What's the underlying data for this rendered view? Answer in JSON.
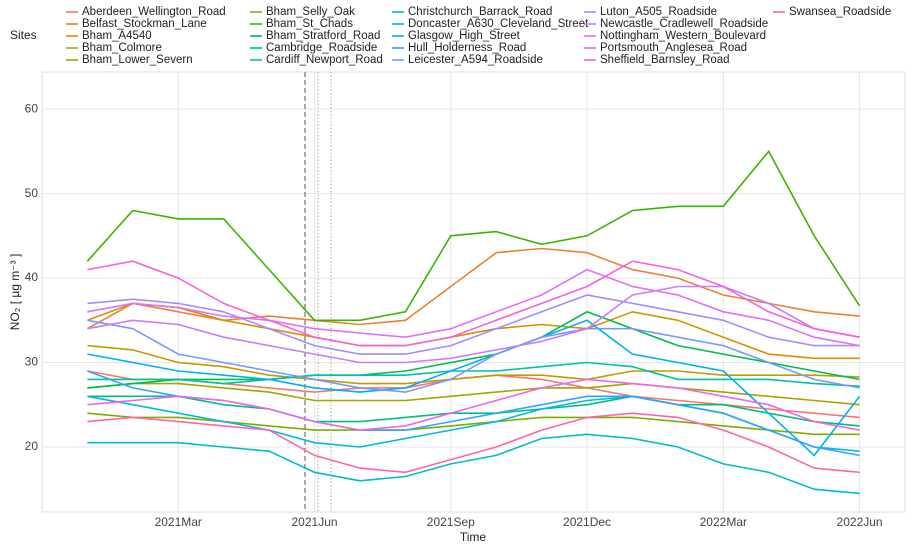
{
  "chart_data": {
    "type": "line",
    "legend_title": "Sites",
    "x_label": "Time",
    "y_label": "NO₂ [ µg m⁻³ ]",
    "x": [
      "2021-01",
      "2021-02",
      "2021-03",
      "2021-04",
      "2021-05",
      "2021-06",
      "2021-07",
      "2021-08",
      "2021-09",
      "2021-10",
      "2021-11",
      "2021-12",
      "2022-01",
      "2022-02",
      "2022-03",
      "2022-04",
      "2022-05",
      "2022-06"
    ],
    "xlim": [
      "2020-12",
      "2022-07"
    ],
    "xticks": [
      {
        "value": "2021-03",
        "label": "2021Mar"
      },
      {
        "value": "2021-06",
        "label": "2021Jun"
      },
      {
        "value": "2021-09",
        "label": "2021Sep"
      },
      {
        "value": "2021-12",
        "label": "2021Dec"
      },
      {
        "value": "2022-03",
        "label": "2022Mar"
      },
      {
        "value": "2022-06",
        "label": "2022Jun"
      }
    ],
    "ylim": [
      12.3,
      64.4
    ],
    "yticks": [
      20,
      30,
      40,
      50,
      60
    ],
    "grid": true,
    "legend": "top",
    "series": [
      {
        "name": "Aberdeen_Wellington_Road",
        "color": "#F8766D",
        "values": [
          29,
          28,
          28,
          27.5,
          27,
          26.5,
          27,
          27,
          28,
          28.5,
          28,
          27,
          26,
          25.5,
          25,
          24.5,
          24,
          23.5
        ]
      },
      {
        "name": "Belfast_Stockman_Lane",
        "color": "#EA8331",
        "values": [
          34,
          37,
          36,
          35,
          35.5,
          35,
          34.5,
          35,
          39,
          43,
          43.5,
          43,
          41,
          40,
          38,
          37,
          36,
          35.5
        ]
      },
      {
        "name": "Bham_A4540",
        "color": "#D89000",
        "values": [
          35,
          37,
          36.5,
          35,
          34,
          33,
          32,
          32,
          33,
          34,
          34.5,
          34,
          36,
          35,
          33,
          31,
          30.5,
          30.5
        ]
      },
      {
        "name": "Bham_Colmore",
        "color": "#C09B00",
        "values": [
          32,
          31.5,
          30,
          29.5,
          28.5,
          28,
          27.5,
          27.5,
          28,
          28.5,
          28.5,
          28,
          29,
          29,
          28.5,
          28.5,
          28.5,
          28.3
        ]
      },
      {
        "name": "Bham_Lower_Severn",
        "color": "#A3A500",
        "values": [
          27,
          27.5,
          27.5,
          27,
          26.5,
          25.5,
          25.5,
          25.5,
          26,
          26.5,
          27,
          27,
          27.5,
          27,
          26.5,
          26,
          25.5,
          25
        ]
      },
      {
        "name": "Bham_Selly_Oak",
        "color": "#7CAE00",
        "values": [
          24,
          23.5,
          23.5,
          23,
          22.5,
          22,
          22,
          22,
          22.5,
          23,
          23.5,
          23.5,
          23.5,
          23,
          22.5,
          22,
          21.5,
          21.5
        ]
      },
      {
        "name": "Bham_St_Chads",
        "color": "#39B600",
        "values": [
          42,
          48,
          47,
          47,
          41,
          35,
          35,
          36,
          45,
          45.5,
          44,
          45,
          48,
          48.5,
          48.5,
          55,
          45,
          36.7
        ]
      },
      {
        "name": "Bham_Stratford_Road",
        "color": "#00BB4E",
        "values": [
          27,
          27.5,
          28,
          28,
          28,
          28.5,
          28.5,
          29,
          30,
          31,
          33,
          36,
          34,
          32,
          31,
          30,
          29,
          28
        ]
      },
      {
        "name": "Cambridge_Roadside",
        "color": "#00BF7D",
        "values": [
          26,
          26,
          26,
          25,
          24.5,
          23,
          23,
          23.5,
          24,
          24,
          24.5,
          25,
          26,
          25,
          25,
          24,
          23,
          22.5
        ]
      },
      {
        "name": "Cardiff_Newport_Road",
        "color": "#00C1A3",
        "values": [
          28,
          28,
          28,
          27.5,
          28,
          28.5,
          28.5,
          28.5,
          29,
          29,
          29.5,
          30,
          29.5,
          28,
          28,
          28,
          27.5,
          27.2
        ]
      },
      {
        "name": "Christchurch_Barrack_Road",
        "color": "#00BFC4",
        "values": [
          20.5,
          20.5,
          20.5,
          20,
          19.5,
          17,
          16,
          16.5,
          18,
          19,
          21,
          21.5,
          21,
          20,
          18,
          17,
          15,
          14.5
        ]
      },
      {
        "name": "Doncaster_A630_Cleveland_Street",
        "color": "#00BAE0",
        "values": [
          26,
          25,
          24,
          23,
          22,
          20.5,
          20,
          21,
          22,
          23,
          24.5,
          25.5,
          26,
          25,
          24,
          22,
          20,
          19.5
        ]
      },
      {
        "name": "Glasgow_High_Street",
        "color": "#00B0F6",
        "values": [
          31,
          30,
          29,
          28.5,
          28,
          27,
          26.5,
          27,
          29,
          31,
          33,
          35,
          31,
          30,
          29,
          24,
          19,
          26
        ]
      },
      {
        "name": "Hull_Holderness_Road",
        "color": "#35A2FF",
        "values": [
          29,
          27,
          26,
          25.5,
          24.5,
          23,
          22,
          22,
          23,
          24,
          25,
          26,
          26,
          25,
          24,
          22,
          20,
          19
        ]
      },
      {
        "name": "Leicester_A594_Roadside",
        "color": "#7997FF",
        "values": [
          35,
          34,
          31,
          30,
          29,
          28,
          27,
          26.5,
          28,
          31,
          33,
          34,
          34,
          33,
          32,
          30,
          28,
          27
        ]
      },
      {
        "name": "Luton_A505_Roadside",
        "color": "#A58AFF",
        "values": [
          37,
          37.5,
          37,
          36,
          34,
          32,
          31,
          31,
          32,
          34,
          36,
          38,
          37,
          36,
          35,
          33,
          32,
          32
        ]
      },
      {
        "name": "Newcastle_Cradlewell_Roadside",
        "color": "#C77CFF",
        "values": [
          34,
          35,
          34.5,
          33,
          32,
          31,
          30,
          30,
          30.5,
          31.5,
          32.5,
          34,
          38,
          39,
          39,
          37,
          34,
          33
        ]
      },
      {
        "name": "Nottingham_Western_Boulevard",
        "color": "#DF70F8",
        "values": [
          36,
          37,
          36.5,
          35.5,
          35,
          34,
          33.5,
          33,
          34,
          36,
          38,
          41,
          39,
          38,
          36,
          35,
          33,
          32
        ]
      },
      {
        "name": "Portsmouth_Anglesea_Road",
        "color": "#F066EA",
        "values": [
          25,
          25.5,
          26,
          25.5,
          24.5,
          23,
          22,
          22.5,
          24,
          25.5,
          27,
          28,
          27.5,
          27,
          26,
          25,
          23,
          22
        ]
      },
      {
        "name": "Sheffield_Barnsley_Road",
        "color": "#FB61D7",
        "values": [
          41,
          42,
          40,
          37,
          35,
          33,
          32,
          32,
          33,
          35,
          37,
          39,
          42,
          41,
          39,
          36,
          34,
          33
        ]
      },
      {
        "name": "Swansea_Roadside",
        "color": "#FF65AC",
        "values": [
          23,
          23.5,
          23,
          22.5,
          22,
          19,
          17.5,
          17,
          18.5,
          20,
          22,
          23.5,
          24,
          23.5,
          22,
          20,
          17.5,
          17
        ]
      }
    ]
  }
}
